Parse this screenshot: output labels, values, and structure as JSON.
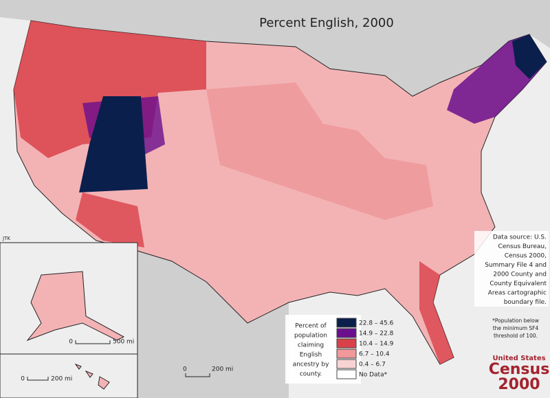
{
  "title": "Percent English, 2000",
  "legend": {
    "heading": [
      "Percent of",
      "population",
      "claiming",
      "English",
      "ancestry by",
      "county."
    ],
    "items": [
      {
        "label": "22.8 – 45.6",
        "color": "#0b1f4d"
      },
      {
        "label": "14.9 – 22.8",
        "color": "#6a0f8e"
      },
      {
        "label": "10.4 – 14.9",
        "color": "#d9414a"
      },
      {
        "label": "6.7 – 10.4",
        "color": "#f0989a"
      },
      {
        "label": "0.4 – 6.7",
        "color": "#f8d3d4"
      },
      {
        "label": "No Data*",
        "color": "#ffffff"
      }
    ]
  },
  "source": [
    "Data source: U.S.",
    "Census Bureau,",
    "Census 2000,",
    "Summary File 4 and",
    "2000 County and",
    "County Equivalent",
    "Areas cartographic",
    "boundary file."
  ],
  "footnote": [
    "*Population below",
    "the minimum SF4",
    "threshold of 100."
  ],
  "scale_bars": {
    "alaska": {
      "zero": "0",
      "distance": "500 mi"
    },
    "hawaii": {
      "zero": "0",
      "distance": "200 mi"
    },
    "main": {
      "zero": "0",
      "distance": "200 mi"
    }
  },
  "credit": "JTK",
  "logo": {
    "line1": "United States",
    "line2": "Census",
    "line3": "2000"
  }
}
